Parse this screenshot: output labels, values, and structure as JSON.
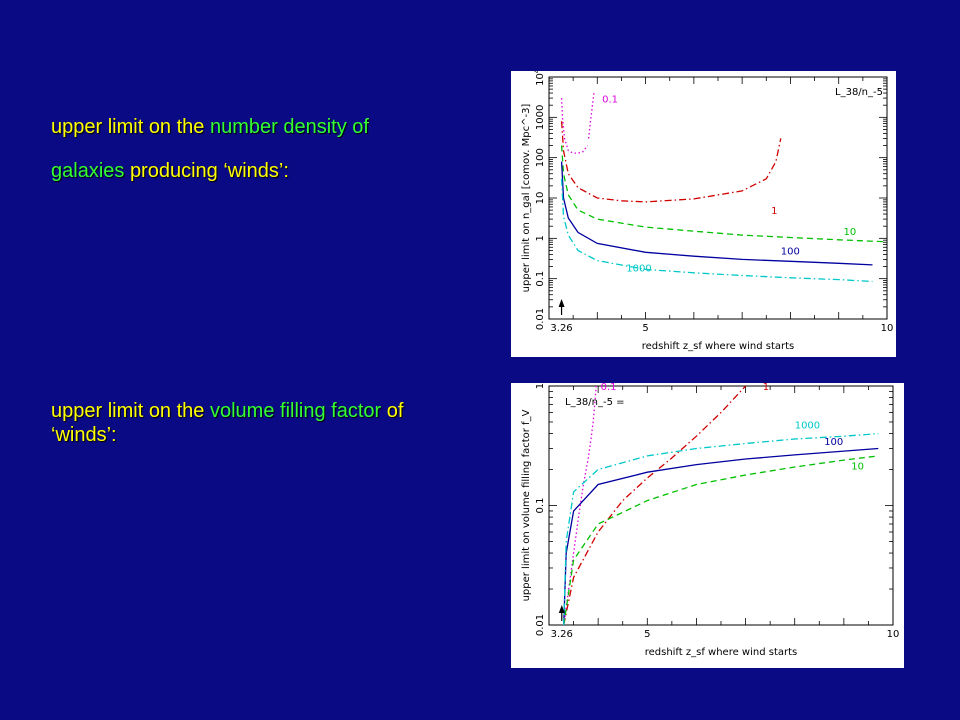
{
  "text1": {
    "line1": [
      {
        "text": "upper limit on the ",
        "color": "yellow"
      },
      {
        "text": "number density of",
        "color": "green"
      }
    ],
    "line2": [
      {
        "text": "galaxies ",
        "color": "green"
      },
      {
        "text": "producing ‘winds’:",
        "color": "yellow"
      }
    ]
  },
  "text2": {
    "line1": [
      {
        "text": "upper limit on the ",
        "color": "yellow"
      },
      {
        "text": "volume filling factor",
        "color": "green"
      },
      {
        "text": " of",
        "color": "yellow"
      }
    ],
    "line2": [
      {
        "text": "‘winds’:",
        "color": "yellow"
      }
    ]
  },
  "chart_data": [
    {
      "type": "line",
      "xlabel": "redshift z_sf where wind starts",
      "ylabel": "upper limit on n_gal [comov. Mpc^-3]",
      "legend_title": "L_38/n_-5",
      "x_ticks": [
        "3.26",
        "5",
        "10"
      ],
      "y_ticks": [
        "0.01",
        "0.1",
        "1",
        "10",
        "100",
        "1000",
        "10^4"
      ],
      "xlim": [
        3,
        10
      ],
      "ylim": [
        0.01,
        10000
      ],
      "yscale": "log",
      "marker_label": "3.26",
      "series": [
        {
          "name": "0.1",
          "color": "#e000e0",
          "style": "dotted",
          "x": [
            3.26,
            3.28,
            3.32,
            3.4,
            3.5,
            3.6,
            3.7,
            3.8
          ],
          "y": [
            3000,
            1000,
            300,
            150,
            130,
            130,
            140,
            200
          ]
        },
        {
          "name": "0.1",
          "color": "#e000e0",
          "style": "dotted",
          "x": [
            3.82,
            3.86,
            3.9,
            3.93
          ],
          "y": [
            300,
            800,
            2000,
            4000
          ]
        },
        {
          "name": "1",
          "color": "#d00000",
          "style": "dashdot",
          "x": [
            3.26,
            3.3,
            3.4,
            3.6,
            4,
            4.5,
            5,
            6,
            7,
            7.5,
            7.7,
            7.8
          ],
          "y": [
            800,
            150,
            40,
            18,
            10,
            8.5,
            8,
            9.5,
            15,
            30,
            80,
            300
          ]
        },
        {
          "name": "10",
          "color": "#00c000",
          "style": "dashed",
          "x": [
            3.26,
            3.3,
            3.4,
            3.6,
            4,
            5,
            6,
            7,
            8,
            9,
            10
          ],
          "y": [
            200,
            40,
            12,
            5,
            3,
            1.9,
            1.5,
            1.2,
            1.05,
            0.92,
            0.82
          ]
        },
        {
          "name": "100",
          "color": "#0000a0",
          "style": "solid",
          "x": [
            3.26,
            3.3,
            3.4,
            3.6,
            4,
            5,
            6,
            7,
            8,
            9,
            9.7
          ],
          "y": [
            80,
            10,
            3.2,
            1.4,
            0.75,
            0.45,
            0.36,
            0.3,
            0.27,
            0.24,
            0.22
          ]
        },
        {
          "name": "1000",
          "color": "#00c8c8",
          "style": "dashdot",
          "x": [
            3.26,
            3.3,
            3.4,
            3.6,
            4,
            5,
            6,
            7,
            8,
            9,
            9.7
          ],
          "y": [
            30,
            3.5,
            1.2,
            0.5,
            0.28,
            0.17,
            0.14,
            0.12,
            0.105,
            0.095,
            0.085
          ]
        }
      ],
      "labels": [
        {
          "text": "0.1",
          "color": "#e000e0",
          "x": 4.1,
          "y": 2300
        },
        {
          "text": "1",
          "color": "#d00000",
          "x": 7.6,
          "y": 4
        },
        {
          "text": "10",
          "color": "#00c000",
          "x": 9.1,
          "y": 1.2
        },
        {
          "text": "100",
          "color": "#0000a0",
          "x": 7.8,
          "y": 0.4
        },
        {
          "text": "1000",
          "color": "#00c8c8",
          "x": 4.6,
          "y": 0.15
        }
      ]
    },
    {
      "type": "line",
      "xlabel": "redshift z_sf where wind starts",
      "ylabel": "upper limit on volume filling factor f_V",
      "legend_title": "L_38/n_-5 =",
      "x_ticks": [
        "3.26",
        "5",
        "10"
      ],
      "y_ticks": [
        "0.01",
        "0.1",
        "1"
      ],
      "xlim": [
        3,
        10
      ],
      "ylim": [
        0.01,
        1
      ],
      "yscale": "log",
      "marker_label": "3.26",
      "series": [
        {
          "name": "0.1",
          "color": "#e000e0",
          "style": "dotted",
          "x": [
            3.3,
            3.4,
            3.5,
            3.6,
            3.7,
            3.8,
            3.85,
            3.9,
            3.93,
            3.96
          ],
          "y": [
            0.01,
            0.02,
            0.04,
            0.08,
            0.15,
            0.25,
            0.35,
            0.5,
            0.7,
            1
          ]
        },
        {
          "name": "1",
          "color": "#d00000",
          "style": "dashdot",
          "x": [
            3.3,
            3.5,
            4,
            4.5,
            5,
            5.5,
            6,
            6.5,
            7
          ],
          "y": [
            0.01,
            0.025,
            0.06,
            0.11,
            0.17,
            0.25,
            0.38,
            0.6,
            1
          ]
        },
        {
          "name": "10",
          "color": "#00c000",
          "style": "dashed",
          "x": [
            3.3,
            3.5,
            4,
            5,
            6,
            7,
            8,
            9,
            9.7
          ],
          "y": [
            0.01,
            0.035,
            0.07,
            0.11,
            0.15,
            0.18,
            0.21,
            0.24,
            0.26
          ]
        },
        {
          "name": "100",
          "color": "#0000a0",
          "style": "solid",
          "x": [
            3.3,
            3.35,
            3.5,
            4,
            5,
            6,
            7,
            8,
            9,
            9.7
          ],
          "y": [
            0.01,
            0.04,
            0.09,
            0.15,
            0.19,
            0.22,
            0.245,
            0.265,
            0.285,
            0.3
          ]
        },
        {
          "name": "1000",
          "color": "#00c8c8",
          "style": "dashdot",
          "x": [
            3.3,
            3.35,
            3.5,
            4,
            5,
            6,
            7,
            8,
            9,
            9.7
          ],
          "y": [
            0.01,
            0.05,
            0.13,
            0.2,
            0.26,
            0.3,
            0.33,
            0.36,
            0.38,
            0.4
          ]
        }
      ],
      "labels": [
        {
          "text": "0.1",
          "color": "#e000e0",
          "x": 4.05,
          "y": 0.93
        },
        {
          "text": "1",
          "color": "#d00000",
          "x": 7.35,
          "y": 0.93
        },
        {
          "text": "1000",
          "color": "#00c8c8",
          "x": 8.0,
          "y": 0.44
        },
        {
          "text": "100",
          "color": "#0000a0",
          "x": 8.6,
          "y": 0.32
        },
        {
          "text": "10",
          "color": "#00c000",
          "x": 9.15,
          "y": 0.2
        }
      ]
    }
  ]
}
